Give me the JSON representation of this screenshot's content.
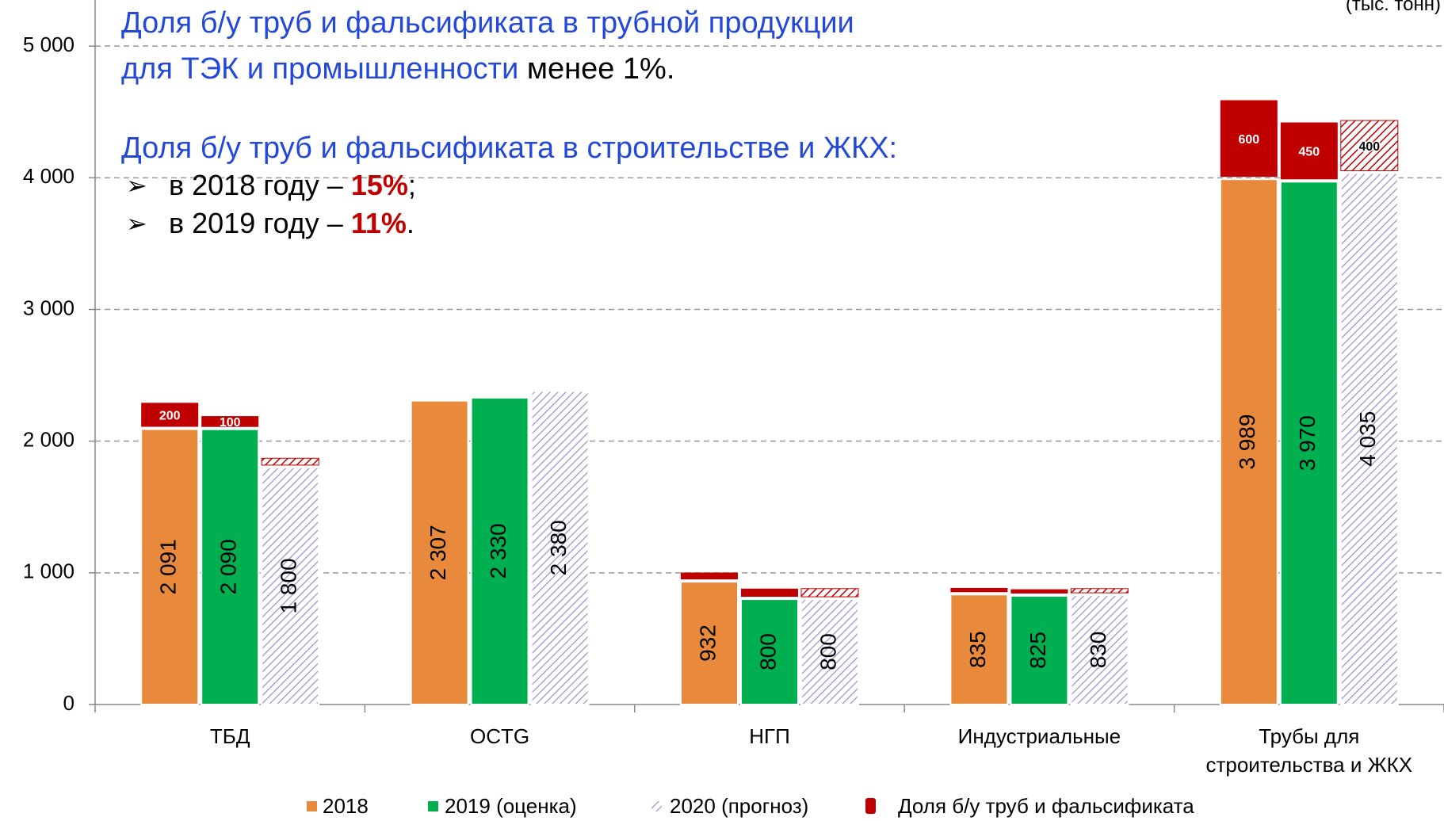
{
  "chart_data": {
    "type": "bar",
    "stacked_overlay": true,
    "unit": "(тыс. тонн)",
    "annotations": [
      {
        "parts": [
          {
            "text": "Доля б/у труб и фальсификата в трубной продукции",
            "color": "#2449d8"
          }
        ]
      },
      {
        "parts": [
          {
            "text": "для ТЭК и промышленности",
            "color": "#2449d8"
          },
          {
            "text": " менее 1%.",
            "color": "#000000"
          }
        ]
      },
      {
        "parts": [
          {
            "text": "Доля б/у труб и фальсификата в строительстве и ЖКХ:",
            "color": "#2449d8"
          }
        ]
      },
      {
        "bullet": "➢",
        "parts": [
          {
            "text": "в 2018 году – ",
            "color": "#000000"
          },
          {
            "text": "15%",
            "color": "#c00000",
            "bold": true
          },
          {
            "text": ";",
            "color": "#000000"
          }
        ]
      },
      {
        "bullet": "➢",
        "parts": [
          {
            "text": "в 2019 году – ",
            "color": "#000000"
          },
          {
            "text": "11%",
            "color": "#c00000",
            "bold": true
          },
          {
            "text": ".",
            "color": "#000000"
          }
        ]
      }
    ],
    "categories": [
      "ТБД",
      "OCTG",
      "НГП",
      "Индустриальные",
      "Трубы для\nстроительства и ЖКХ"
    ],
    "series": [
      {
        "name": "2018",
        "color": "#e8893c",
        "values": [
          2091,
          2307,
          932,
          835,
          3989
        ],
        "value_labels": [
          "2 091",
          "2 307",
          "932",
          "835",
          "3 989"
        ]
      },
      {
        "name": "2019 (оценка)",
        "color": "#00b050",
        "values": [
          2090,
          2330,
          800,
          825,
          3970
        ],
        "value_labels": [
          "2 090",
          "2 330",
          "800",
          "825",
          "3 970"
        ]
      },
      {
        "name": "2020 (прогноз)",
        "color": "#a295c8",
        "pattern": "hatch",
        "values": [
          1800,
          2380,
          800,
          830,
          4035
        ],
        "value_labels": [
          "1 800",
          "2 380",
          "800",
          "830",
          "4 035"
        ]
      }
    ],
    "overlay": {
      "name": "Доля б/у труб и фальсификата",
      "color": "#c00000",
      "values": [
        [
          200,
          100,
          70
        ],
        [
          null,
          null,
          null
        ],
        [
          70,
          80,
          80
        ],
        [
          50,
          50,
          50
        ],
        [
          600,
          450,
          400
        ]
      ],
      "value_labels": [
        [
          "200",
          "100",
          null
        ],
        [
          null,
          null,
          null
        ],
        [
          null,
          null,
          null
        ],
        [
          null,
          null,
          null
        ],
        [
          "600",
          "450",
          "400"
        ]
      ]
    },
    "ylim": [
      0,
      5350
    ],
    "yticks": [
      0,
      {
        "value": 1000,
        "label": "1 000"
      },
      {
        "value": 2000,
        "label": "2 000"
      },
      {
        "value": 3000,
        "label": "3 000"
      },
      {
        "value": 4000,
        "label": "4 000"
      },
      {
        "value": 5000,
        "label": "5 000"
      }
    ],
    "grid": true,
    "legend": "bottom"
  }
}
